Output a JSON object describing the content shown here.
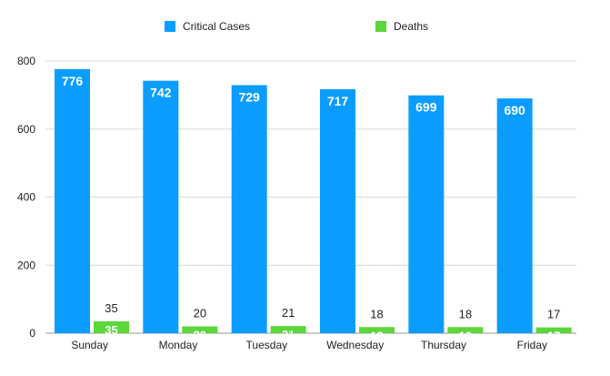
{
  "chart_data": {
    "type": "bar",
    "categories": [
      "Sunday",
      "Monday",
      "Tuesday",
      "Wednesday",
      "Thursday",
      "Friday"
    ],
    "series": [
      {
        "name": "Critical Cases",
        "color": "#0A9DFF",
        "values": [
          776,
          742,
          729,
          717,
          699,
          690
        ]
      },
      {
        "name": "Deaths",
        "color": "#5CD63A",
        "values": [
          35,
          20,
          21,
          18,
          18,
          17
        ]
      }
    ],
    "ylim": [
      0,
      800
    ],
    "yticks": [
      0,
      200,
      400,
      600,
      800
    ],
    "grid": true,
    "legend": "top-center",
    "title": "",
    "xlabel": "",
    "ylabel": ""
  }
}
